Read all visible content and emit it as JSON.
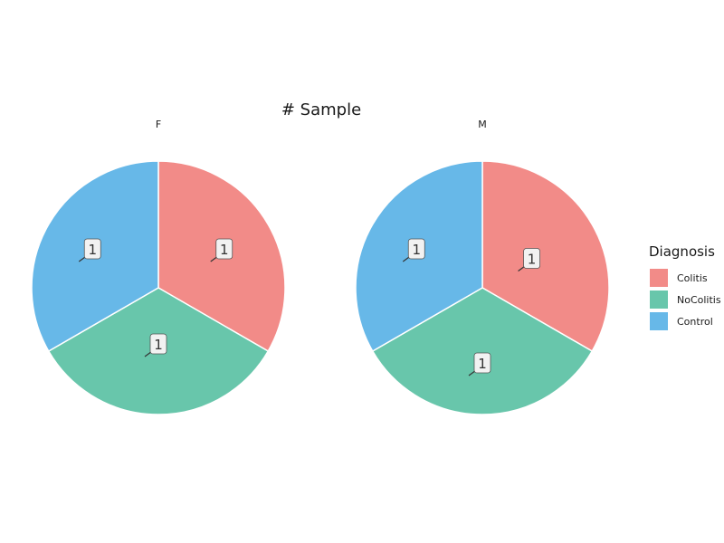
{
  "chart_data": {
    "type": "pie",
    "title": "# Sample",
    "legend": {
      "title": "Diagnosis",
      "placement": "right",
      "entries": [
        {
          "label": "Colitis",
          "color": "#f28b88"
        },
        {
          "label": "NoColitis",
          "color": "#68c6ab"
        },
        {
          "label": "Control",
          "color": "#67b8e8"
        }
      ]
    },
    "facets": [
      {
        "label": "F",
        "slices": [
          {
            "category": "Colitis",
            "value": 1
          },
          {
            "category": "NoColitis",
            "value": 1
          },
          {
            "category": "Control",
            "value": 1
          }
        ]
      },
      {
        "label": "M",
        "slices": [
          {
            "category": "Colitis",
            "value": 1
          },
          {
            "category": "NoColitis",
            "value": 1
          },
          {
            "category": "Control",
            "value": 1
          }
        ]
      }
    ]
  }
}
